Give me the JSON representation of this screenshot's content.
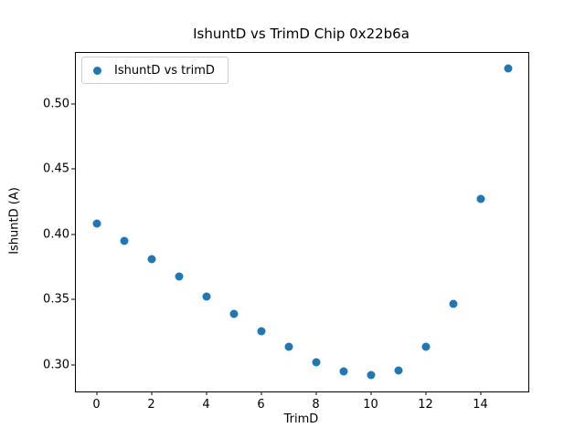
{
  "figure": {
    "background": "#ffffff"
  },
  "chart_data": {
    "type": "scatter",
    "title": "IshuntD vs TrimD Chip 0x22b6a",
    "xlabel": "TrimD",
    "ylabel": "IshuntD (A)",
    "legend": {
      "label": "IshuntD vs trimD",
      "position": "upper left"
    },
    "marker_color": "#1f77b4",
    "x": [
      0,
      1,
      2,
      3,
      4,
      5,
      6,
      7,
      8,
      9,
      10,
      11,
      12,
      13,
      14,
      15
    ],
    "y": [
      0.408,
      0.395,
      0.381,
      0.368,
      0.352,
      0.339,
      0.326,
      0.314,
      0.302,
      0.295,
      0.292,
      0.296,
      0.314,
      0.347,
      0.427,
      0.527
    ],
    "xticks": [
      0,
      2,
      4,
      6,
      8,
      10,
      12,
      14
    ],
    "yticks": [
      0.3,
      0.35,
      0.4,
      0.45,
      0.5
    ],
    "xlim": [
      -0.75,
      15.75
    ],
    "ylim": [
      0.2797,
      0.5388
    ],
    "grid": false
  }
}
